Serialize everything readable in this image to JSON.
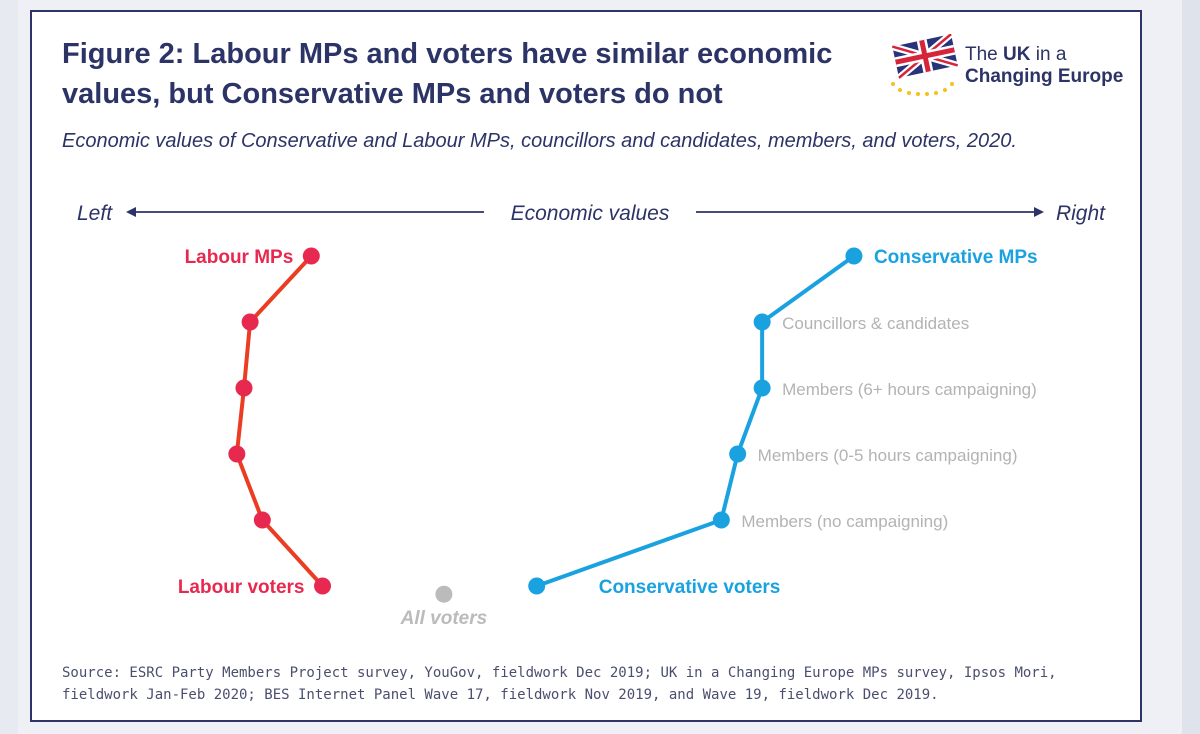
{
  "title": "Figure 2: Labour MPs and voters have similar economic\nvalues, but Conservative MPs and voters do not",
  "subtitle": "Economic values of Conservative and Labour MPs, councillors and candidates, members, and voters, 2020.",
  "logo": {
    "line1_pre": "The ",
    "line1_bold": "UK",
    "line1_post": " in a",
    "line2": "Changing Europe"
  },
  "source": "Source: ESRC Party Members Project survey, YouGov, fieldwork Dec 2019; UK in a Changing Europe MPs survey, Ipsos Mori, fieldwork Jan-Feb 2020; BES Internet Panel Wave 17, fieldwork Nov 2019, and Wave 19, fieldwork Dec 2019.",
  "colors": {
    "labour_line": "#ea3d22",
    "labour_point": "#e8294f",
    "conservative": "#1aa2e0",
    "all_voters": "#bbbbbb",
    "member_label": "#b3b3b3",
    "axis": "#2c3366",
    "title": "#2c3366"
  },
  "chart_data": {
    "type": "line",
    "axis": {
      "label": "Economic values",
      "left_label": "Left",
      "right_label": "Right"
    },
    "xlim": [
      0,
      100
    ],
    "levels": [
      "MPs",
      "Councillors & candidates",
      "Members (6+ hours campaigning)",
      "Members (0-5 hours campaigning)",
      "Members (no campaigning)",
      "Voters"
    ],
    "series": [
      {
        "name": "Labour",
        "points": [
          {
            "level": 0,
            "x": 21.5,
            "label": "Labour MPs"
          },
          {
            "level": 1,
            "x": 15.5,
            "label": ""
          },
          {
            "level": 2,
            "x": 14.9,
            "label": ""
          },
          {
            "level": 3,
            "x": 14.2,
            "label": ""
          },
          {
            "level": 4,
            "x": 16.7,
            "label": ""
          },
          {
            "level": 5,
            "x": 22.6,
            "label": "Labour voters"
          }
        ]
      },
      {
        "name": "Conservative",
        "points": [
          {
            "level": 0,
            "x": 74.7,
            "label": "Conservative MPs"
          },
          {
            "level": 1,
            "x": 65.7,
            "label": "Councillors & candidates"
          },
          {
            "level": 2,
            "x": 65.7,
            "label": "Members (6+ hours campaigning)"
          },
          {
            "level": 3,
            "x": 63.3,
            "label": "Members (0-5 hours campaigning)"
          },
          {
            "level": 4,
            "x": 61.7,
            "label": "Members (no campaigning)"
          },
          {
            "level": 5,
            "x": 43.6,
            "label": "Conservative voters"
          }
        ]
      },
      {
        "name": "All voters",
        "points": [
          {
            "level": 5.2,
            "x": 34.5,
            "label": "All voters"
          }
        ]
      }
    ]
  }
}
